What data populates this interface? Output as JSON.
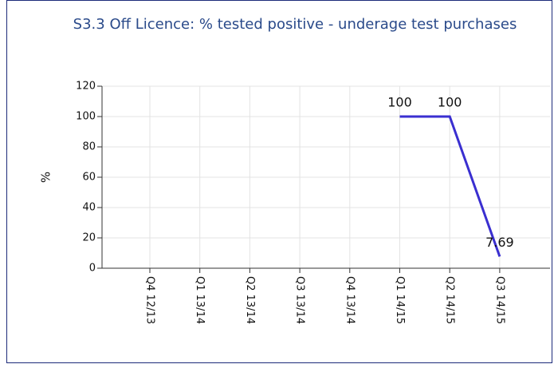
{
  "chart_data": {
    "type": "line",
    "title": "S3.3 Off Licence: % tested positive - underage test purchases",
    "y_label": "%",
    "categories": [
      "Q4 12/13",
      "Q1 13/14",
      "Q2 13/14",
      "Q3 13/14",
      "Q4 13/14",
      "Q1 14/15",
      "Q2 14/15",
      "Q3 14/15"
    ],
    "values": [
      null,
      null,
      null,
      null,
      null,
      100,
      100,
      7.69
    ],
    "color": "#3a2fd0",
    "ylim": [
      0,
      120
    ],
    "yticks": [
      0,
      20,
      40,
      60,
      80,
      100,
      120
    ],
    "grid": true
  }
}
